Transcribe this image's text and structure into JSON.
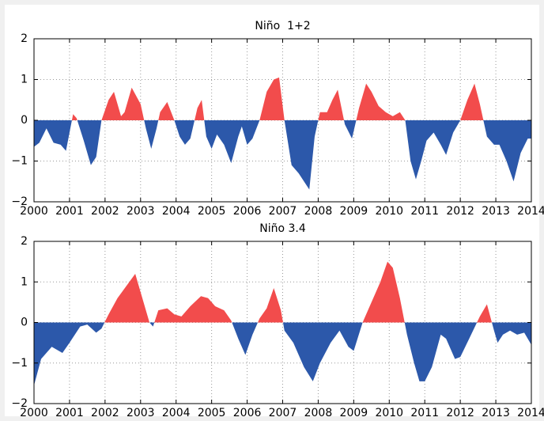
{
  "chart_data": [
    {
      "type": "area",
      "title": "Niño  1+2",
      "x": [
        2000.0,
        2000.15,
        2000.35,
        2000.55,
        2000.75,
        2000.9,
        2001.0,
        2001.1,
        2001.2,
        2001.4,
        2001.6,
        2001.75,
        2001.9,
        2002.1,
        2002.25,
        2002.45,
        2002.55,
        2002.75,
        2003.0,
        2003.15,
        2003.3,
        2003.45,
        2003.55,
        2003.75,
        2003.95,
        2004.1,
        2004.25,
        2004.4,
        2004.6,
        2004.72,
        2004.85,
        2005.0,
        2005.15,
        2005.35,
        2005.55,
        2005.75,
        2005.85,
        2006.0,
        2006.15,
        2006.35,
        2006.55,
        2006.75,
        2006.9,
        2007.05,
        2007.25,
        2007.45,
        2007.6,
        2007.75,
        2007.9,
        2008.05,
        2008.25,
        2008.4,
        2008.55,
        2008.75,
        2008.95,
        2009.15,
        2009.35,
        2009.5,
        2009.7,
        2009.9,
        2010.1,
        2010.3,
        2010.45,
        2010.6,
        2010.75,
        2010.9,
        2011.05,
        2011.25,
        2011.45,
        2011.6,
        2011.8,
        2012.0,
        2012.2,
        2012.4,
        2012.55,
        2012.75,
        2012.95,
        2013.1,
        2013.3,
        2013.5,
        2013.7,
        2013.9,
        2014.0
      ],
      "values": [
        -0.65,
        -0.55,
        -0.2,
        -0.55,
        -0.6,
        -0.75,
        -0.3,
        0.15,
        0.05,
        -0.5,
        -1.1,
        -0.9,
        0,
        0.5,
        0.7,
        0.1,
        0.2,
        0.8,
        0.4,
        -0.2,
        -0.7,
        -0.2,
        0.2,
        0.45,
        0,
        -0.4,
        -0.6,
        -0.45,
        0.3,
        0.5,
        -0.4,
        -0.7,
        -0.35,
        -0.6,
        -1.05,
        -0.4,
        -0.15,
        -0.6,
        -0.45,
        0,
        0.7,
        1.0,
        1.05,
        0,
        -1.1,
        -1.3,
        -1.5,
        -1.7,
        -0.4,
        0.2,
        0.2,
        0.5,
        0.75,
        -0.1,
        -0.45,
        0.3,
        0.9,
        0.7,
        0.35,
        0.2,
        0.1,
        0.2,
        0,
        -1.0,
        -1.45,
        -1.0,
        -0.5,
        -0.3,
        -0.6,
        -0.85,
        -0.3,
        0,
        0.5,
        0.9,
        0.4,
        -0.4,
        -0.6,
        -0.6,
        -1.0,
        -1.5,
        -0.8,
        -0.45,
        -0.45
      ],
      "positive_color": "#f24c4c",
      "negative_color": "#2c58aa",
      "xlim": [
        2000,
        2014
      ],
      "xticks": [
        2000,
        2001,
        2002,
        2003,
        2004,
        2005,
        2006,
        2007,
        2008,
        2009,
        2010,
        2011,
        2012,
        2013,
        2014
      ],
      "ylim": [
        -2,
        2
      ],
      "yticks": [
        {
          "value": -2,
          "label": "−2"
        },
        {
          "value": -1,
          "label": "−1"
        },
        0,
        1,
        2
      ],
      "grid": true
    },
    {
      "type": "area",
      "title": "Niño 3.4",
      "x": [
        2000.0,
        2000.2,
        2000.5,
        2000.8,
        2001.0,
        2001.3,
        2001.5,
        2001.75,
        2001.9,
        2002.1,
        2002.35,
        2002.6,
        2002.85,
        2003.05,
        2003.25,
        2003.35,
        2003.5,
        2003.75,
        2003.95,
        2004.15,
        2004.4,
        2004.7,
        2004.9,
        2005.1,
        2005.35,
        2005.55,
        2005.75,
        2005.95,
        2006.15,
        2006.35,
        2006.55,
        2006.75,
        2006.95,
        2007.05,
        2007.3,
        2007.6,
        2007.85,
        2008.05,
        2008.35,
        2008.6,
        2008.85,
        2009.0,
        2009.25,
        2009.5,
        2009.75,
        2009.95,
        2010.1,
        2010.3,
        2010.5,
        2010.7,
        2010.85,
        2011.0,
        2011.2,
        2011.45,
        2011.6,
        2011.85,
        2012.0,
        2012.25,
        2012.55,
        2012.75,
        2012.95,
        2013.05,
        2013.2,
        2013.4,
        2013.6,
        2013.8,
        2014.0
      ],
      "values": [
        -1.55,
        -0.9,
        -0.6,
        -0.75,
        -0.5,
        -0.1,
        -0.05,
        -0.25,
        -0.15,
        0.2,
        0.6,
        0.9,
        1.2,
        0.6,
        0,
        -0.1,
        0.3,
        0.35,
        0.2,
        0.15,
        0.4,
        0.65,
        0.6,
        0.4,
        0.3,
        0.05,
        -0.4,
        -0.8,
        -0.3,
        0.1,
        0.35,
        0.85,
        0.3,
        -0.2,
        -0.5,
        -1.1,
        -1.45,
        -1.0,
        -0.5,
        -0.2,
        -0.6,
        -0.7,
        0,
        0.5,
        1.0,
        1.5,
        1.35,
        0.6,
        -0.3,
        -1.0,
        -1.45,
        -1.45,
        -1.1,
        -0.3,
        -0.4,
        -0.9,
        -0.85,
        -0.4,
        0.15,
        0.45,
        -0.2,
        -0.5,
        -0.3,
        -0.2,
        -0.3,
        -0.25,
        -0.55
      ],
      "positive_color": "#f24c4c",
      "negative_color": "#2c58aa",
      "xlim": [
        2000,
        2014
      ],
      "xticks": [
        2000,
        2001,
        2002,
        2003,
        2004,
        2005,
        2006,
        2007,
        2008,
        2009,
        2010,
        2011,
        2012,
        2013,
        2014
      ],
      "ylim": [
        -2,
        2
      ],
      "yticks": [
        {
          "value": -2,
          "label": "−2"
        },
        {
          "value": -1,
          "label": "−1"
        },
        0,
        1,
        2
      ],
      "grid": true
    }
  ]
}
